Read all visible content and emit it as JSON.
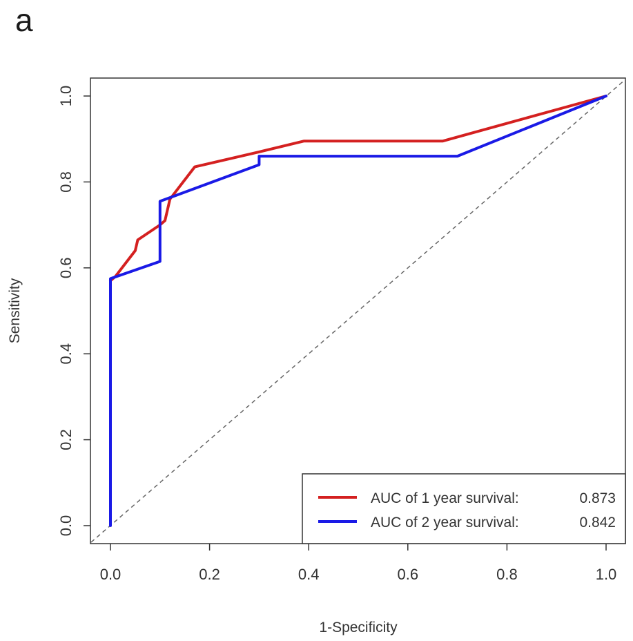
{
  "panel_label": "a",
  "chart_data": {
    "type": "line",
    "xlabel": "1-Specificity",
    "ylabel": "Sensitivity",
    "xlim": [
      0.0,
      1.0
    ],
    "ylim": [
      0.0,
      1.0
    ],
    "x_ticks": [
      "0.0",
      "0.2",
      "0.4",
      "0.6",
      "0.8",
      "1.0"
    ],
    "y_ticks": [
      "0.0",
      "0.2",
      "0.4",
      "0.6",
      "0.8",
      "1.0"
    ],
    "grid": false,
    "legend_position": "bottom-right",
    "reference_line": {
      "style": "dashed",
      "color": "#666666",
      "from": [
        0,
        0
      ],
      "to": [
        1,
        1
      ]
    },
    "series": [
      {
        "name": "AUC of 1 year survival:",
        "auc": "0.873",
        "color": "#d42020",
        "points": [
          [
            0.0,
            0.57
          ],
          [
            0.01,
            0.58
          ],
          [
            0.05,
            0.64
          ],
          [
            0.055,
            0.665
          ],
          [
            0.1,
            0.7
          ],
          [
            0.11,
            0.71
          ],
          [
            0.12,
            0.76
          ],
          [
            0.17,
            0.835
          ],
          [
            0.3,
            0.87
          ],
          [
            0.39,
            0.895
          ],
          [
            0.67,
            0.895
          ],
          [
            1.0,
            1.0
          ]
        ]
      },
      {
        "name": "AUC of 2 year survival:",
        "auc": "0.842",
        "color": "#1a1ae6",
        "points": [
          [
            0.0,
            0.0
          ],
          [
            0.0,
            0.575
          ],
          [
            0.1,
            0.615
          ],
          [
            0.1,
            0.755
          ],
          [
            0.3,
            0.84
          ],
          [
            0.3,
            0.86
          ],
          [
            0.7,
            0.86
          ],
          [
            1.0,
            1.0
          ]
        ]
      }
    ]
  }
}
